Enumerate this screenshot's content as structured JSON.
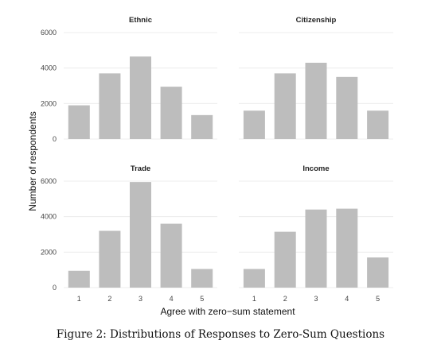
{
  "chart_data": {
    "type": "bar",
    "xlabel": "Agree with zero−sum statement",
    "ylabel": "Number of respondents",
    "ylim": [
      0,
      6000
    ],
    "yticks": [
      0,
      2000,
      4000,
      6000
    ],
    "categories": [
      "1",
      "2",
      "3",
      "4",
      "5"
    ],
    "grid": true,
    "panels": [
      {
        "title": "Ethnic",
        "values": [
          1900,
          3700,
          4650,
          2950,
          1350
        ]
      },
      {
        "title": "Citizenship",
        "values": [
          1600,
          3700,
          4300,
          3500,
          1600
        ]
      },
      {
        "title": "Trade",
        "values": [
          950,
          3200,
          5950,
          3600,
          1050
        ]
      },
      {
        "title": "Income",
        "values": [
          1050,
          3150,
          4400,
          4450,
          1700
        ]
      }
    ]
  },
  "caption": "Figure 2: Distributions of Responses to Zero-Sum Questions"
}
